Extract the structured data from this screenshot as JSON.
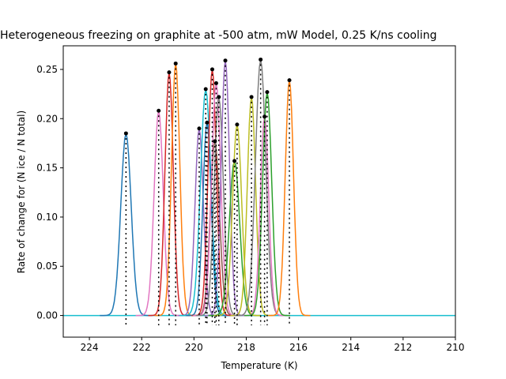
{
  "chart_data": {
    "type": "line",
    "title": "Heterogeneous freezing on graphite at -500 atm, mW Model, 0.25 K/ns cooling",
    "xlabel": "Temperature (K)",
    "ylabel": "Rate of change for (N ice / N total)",
    "xlim": [
      225,
      210
    ],
    "ylim": [
      -0.022,
      0.274
    ],
    "x_inverted": true,
    "x_ticks": [
      "224",
      "222",
      "220",
      "218",
      "216",
      "214",
      "212",
      "210"
    ],
    "x_tick_values": [
      224,
      222,
      220,
      218,
      216,
      214,
      212,
      210
    ],
    "y_ticks": [
      "0.00",
      "0.05",
      "0.10",
      "0.15",
      "0.20",
      "0.25"
    ],
    "y_tick_values": [
      0.0,
      0.05,
      0.1,
      0.15,
      0.2,
      0.25
    ],
    "grid": false,
    "legend": "none",
    "marker_color": "#000000",
    "series": [
      {
        "color": "#1f77b4",
        "peak_T": 222.6,
        "peak_rate": 0.185,
        "width": 0.25
      },
      {
        "color": "#e377c2",
        "peak_T": 221.35,
        "peak_rate": 0.208,
        "width": 0.22
      },
      {
        "color": "#d62728",
        "peak_T": 220.95,
        "peak_rate": 0.247,
        "width": 0.2
      },
      {
        "color": "#ff7f0e",
        "peak_T": 220.7,
        "peak_rate": 0.256,
        "width": 0.2
      },
      {
        "color": "#9467bd",
        "peak_T": 219.8,
        "peak_rate": 0.19,
        "width": 0.2
      },
      {
        "color": "#17becf",
        "peak_T": 219.55,
        "peak_rate": 0.23,
        "width": 0.25
      },
      {
        "color": "#1f77b4",
        "peak_T": 219.5,
        "peak_rate": 0.196,
        "width": 0.2
      },
      {
        "color": "#d62728",
        "peak_T": 219.3,
        "peak_rate": 0.25,
        "width": 0.2
      },
      {
        "color": "#8c564b",
        "peak_T": 219.2,
        "peak_rate": 0.177,
        "width": 0.22
      },
      {
        "color": "#e377c2",
        "peak_T": 219.15,
        "peak_rate": 0.236,
        "width": 0.22
      },
      {
        "color": "#7f7f7f",
        "peak_T": 219.05,
        "peak_rate": 0.222,
        "width": 0.22
      },
      {
        "color": "#9467bd",
        "peak_T": 218.8,
        "peak_rate": 0.259,
        "width": 0.2
      },
      {
        "color": "#2ca02c",
        "peak_T": 218.45,
        "peak_rate": 0.157,
        "width": 0.25
      },
      {
        "color": "#bcbd22",
        "peak_T": 218.35,
        "peak_rate": 0.194,
        "width": 0.22
      },
      {
        "color": "#bcbd22",
        "peak_T": 217.8,
        "peak_rate": 0.222,
        "width": 0.2
      },
      {
        "color": "#7f7f7f",
        "peak_T": 217.45,
        "peak_rate": 0.26,
        "width": 0.25
      },
      {
        "color": "#e377c2",
        "peak_T": 217.3,
        "peak_rate": 0.202,
        "width": 0.2
      },
      {
        "color": "#2ca02c",
        "peak_T": 217.2,
        "peak_rate": 0.227,
        "width": 0.22
      },
      {
        "color": "#ff7f0e",
        "peak_T": 216.35,
        "peak_rate": 0.239,
        "width": 0.2
      }
    ],
    "baseline_color": "#17becf"
  }
}
